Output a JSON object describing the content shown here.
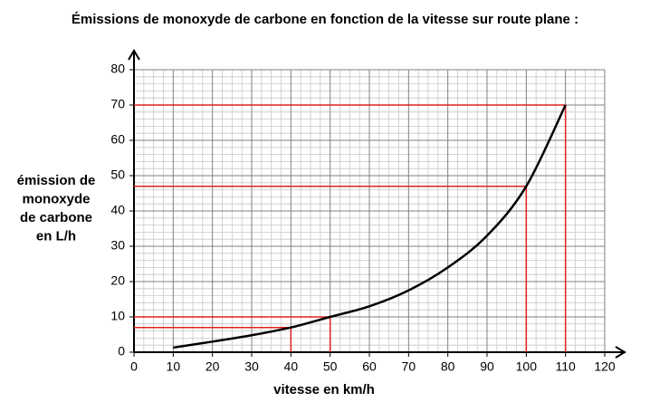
{
  "chart_data": {
    "type": "line",
    "title": "Émissions de monoxyde de carbone en fonction de la vitesse sur route plane :",
    "xlabel": "vitesse en km/h",
    "ylabel": [
      "émission de",
      "monoxyde",
      "de carbone",
      "en L/h"
    ],
    "x": [
      10,
      20,
      30,
      40,
      50,
      60,
      70,
      80,
      90,
      100,
      110
    ],
    "values": [
      1.3,
      3,
      4.8,
      7,
      10,
      13,
      17.5,
      24,
      33,
      47,
      70
    ],
    "color": "#000000",
    "xlim": [
      0,
      120
    ],
    "xticks": [
      0,
      10,
      20,
      30,
      40,
      50,
      60,
      70,
      80,
      90,
      100,
      110,
      120
    ],
    "ylim": [
      0,
      80
    ],
    "yticks": [
      0,
      10,
      20,
      30,
      40,
      50,
      60,
      70,
      80
    ],
    "grid": true,
    "guides": [
      {
        "x": 40,
        "y": 7
      },
      {
        "x": 50,
        "y": 10
      },
      {
        "x": 100,
        "y": 47
      },
      {
        "x": 110,
        "y": 70
      }
    ],
    "guide_color": "#e02020"
  }
}
